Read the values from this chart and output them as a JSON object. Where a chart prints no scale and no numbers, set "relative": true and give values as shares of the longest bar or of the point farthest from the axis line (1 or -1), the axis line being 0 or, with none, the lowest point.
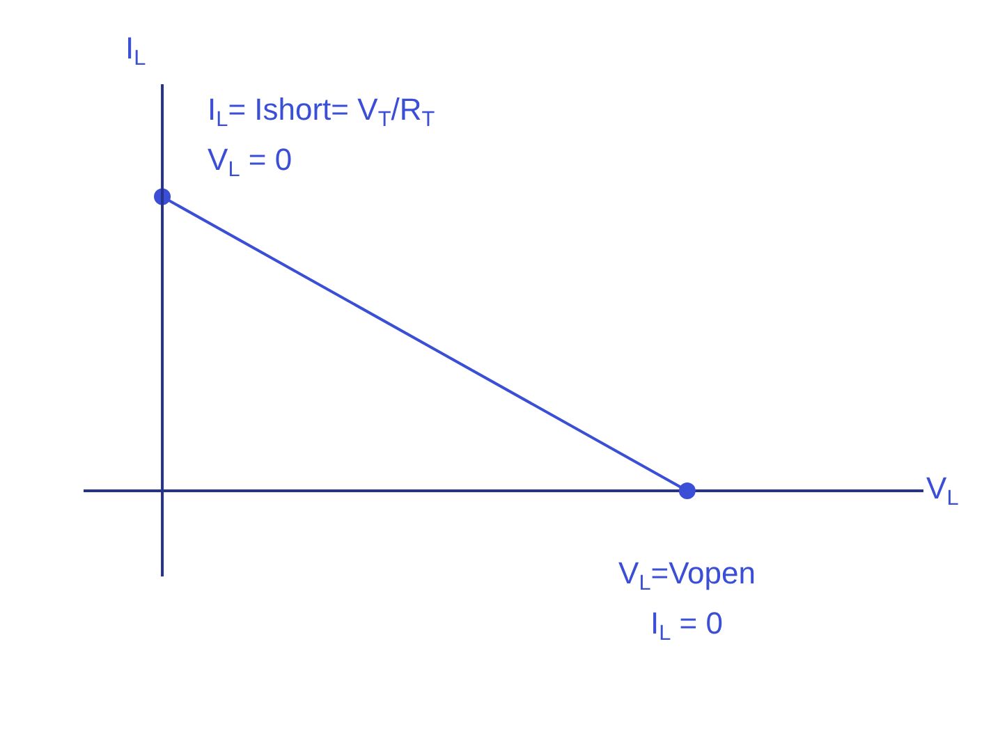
{
  "chart_data": {
    "type": "line",
    "relative": true,
    "xlabel": "V$_{L}$",
    "ylabel": "I$_{L}$",
    "categories": [
      null,
      null
    ],
    "series": [
      {
        "color": "#3a4fd6",
        "values": [
          1,
          0
        ]
      }
    ],
    "marker": "circle",
    "line_style": "solid",
    "annotations": [
      "I$_{L}$= Ishort= V$_{T}$/R$_{T}$",
      "V$_{L}$ = 0",
      "V$_{L}$=Vopen",
      "I$_{L}$ = 0"
    ]
  }
}
